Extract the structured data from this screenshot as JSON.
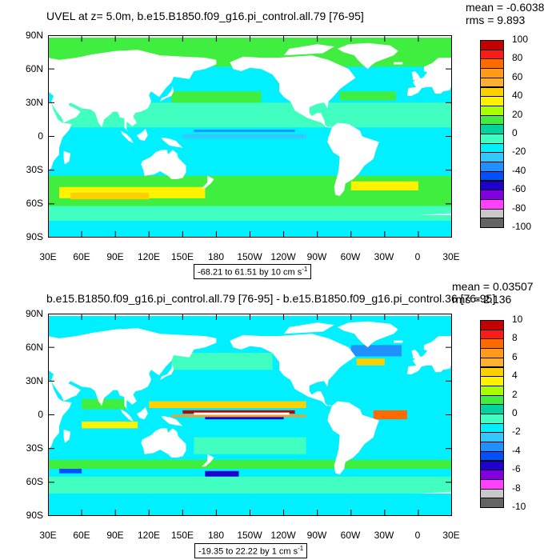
{
  "panels": [
    {
      "title": "UVEL at z=   5.0m, b.e15.B1850.f09_g16.pi_control.all.79 [76-95]",
      "mean": "mean = -0.6038",
      "rms": "rms = 9.893",
      "range_label": "-68.21 to 61.51 by 10 cm s",
      "range_unit_exp": "-1",
      "lat_labels": [
        "90N",
        "60N",
        "30N",
        "0",
        "30S",
        "60S",
        "90S"
      ],
      "lon_labels": [
        "30E",
        "60E",
        "90E",
        "120E",
        "150E",
        "180",
        "150W",
        "120W",
        "90W",
        "60W",
        "30W",
        "0",
        "30E"
      ],
      "colorbar_labels": [
        "100",
        "80",
        "60",
        "40",
        "20",
        "0",
        "-20",
        "-40",
        "-60",
        "-80",
        "-100"
      ],
      "colorbar_colors": [
        "#c40000",
        "#ff1a1a",
        "#ff6a00",
        "#ff9a1a",
        "#ffb030",
        "#ffd000",
        "#fff200",
        "#a8ff00",
        "#40ee40",
        "#00d2a0",
        "#40ffc0",
        "#00f0ff",
        "#30c8ff",
        "#2090ff",
        "#0050ff",
        "#2000d0",
        "#8000e0",
        "#ff40ff",
        "#c8c8c8",
        "#646464"
      ],
      "field_scale": 1
    },
    {
      "title": "b.e15.B1850.f09_g16.pi_control.all.79 [76-95] - b.e15.B1850.f09_g16.pi_control.36 [76-95]",
      "mean": "mean = 0.03507",
      "rms": "rms = 2.136",
      "range_label": "-19.35 to 22.22 by 1 cm s",
      "range_unit_exp": "-1",
      "lat_labels": [
        "90N",
        "60N",
        "30N",
        "0",
        "30S",
        "60S",
        "90S"
      ],
      "lon_labels": [
        "30E",
        "60E",
        "90E",
        "120E",
        "150E",
        "180",
        "150W",
        "120W",
        "90W",
        "60W",
        "30W",
        "0",
        "30E"
      ],
      "colorbar_labels": [
        "10",
        "8",
        "6",
        "4",
        "2",
        "0",
        "-2",
        "-4",
        "-6",
        "-8",
        "-10"
      ],
      "colorbar_colors": [
        "#c40000",
        "#ff1a1a",
        "#ff6a00",
        "#ff9a1a",
        "#ffb030",
        "#ffd000",
        "#fff200",
        "#a8ff00",
        "#40ee40",
        "#00d2a0",
        "#40ffc0",
        "#00f0ff",
        "#30c8ff",
        "#2090ff",
        "#0050ff",
        "#2000d0",
        "#8000e0",
        "#ff40ff",
        "#c8c8c8",
        "#646464"
      ],
      "field_scale": 1
    }
  ]
}
